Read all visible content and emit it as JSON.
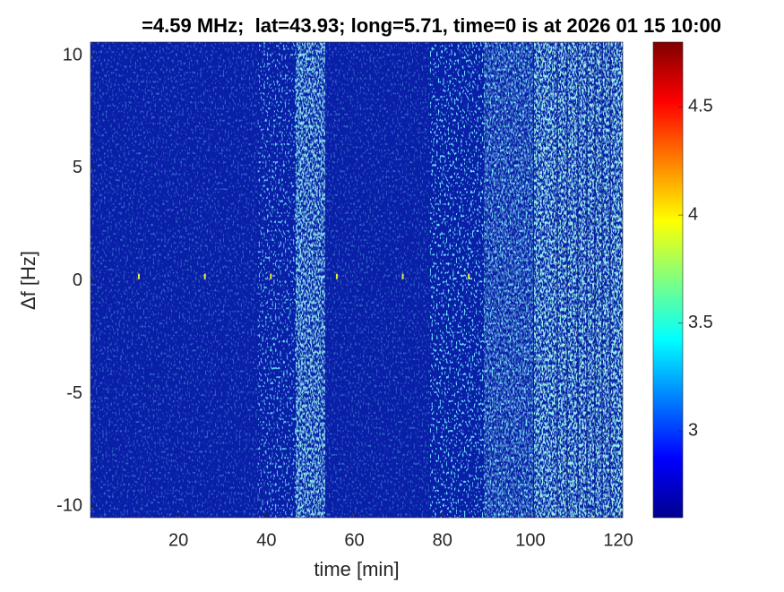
{
  "chart_data": {
    "type": "heatmap",
    "title": "=4.59 MHz;  lat=43.93; long=5.71, time=0 is at 2026 01 15 10:00",
    "x_label": "time [min]",
    "y_label": "Δf [Hz]",
    "xlim": [
      0,
      121
    ],
    "xticks": [
      20,
      40,
      60,
      80,
      100,
      120
    ],
    "ylim": [
      -10.5,
      10.6
    ],
    "yticks": [
      -10,
      -5,
      0,
      5,
      10
    ],
    "clim": [
      2.6,
      4.8
    ],
    "cticks": [
      3,
      3.5,
      4,
      4.5
    ],
    "colormap": "jet",
    "spikes": {
      "x": [
        11,
        26,
        41,
        56,
        71,
        86
      ],
      "y": [
        0.2,
        0.2,
        0.2,
        0.2,
        0.2,
        0.2
      ]
    }
  }
}
